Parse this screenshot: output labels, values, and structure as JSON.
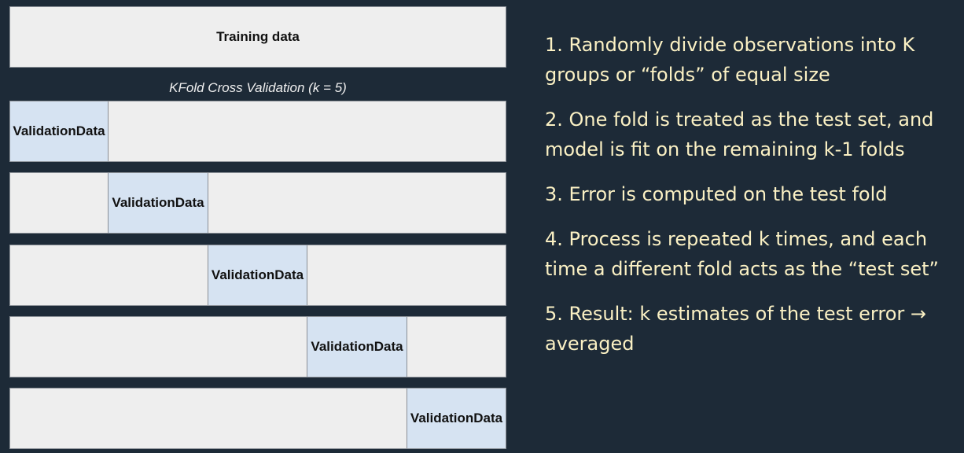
{
  "training": {
    "label": "Training data"
  },
  "caption": "KFold Cross Validation (k = 5)",
  "folds": {
    "k": 5,
    "validation_label_line1": "Validation",
    "validation_label_line2": "Data",
    "rows": [
      {
        "validation_index": 0
      },
      {
        "validation_index": 1
      },
      {
        "validation_index": 2
      },
      {
        "validation_index": 3
      },
      {
        "validation_index": 4
      }
    ]
  },
  "steps": [
    "1. Randomly divide observations into K groups or “folds” of equal size",
    "2. One fold is treated as the test set, and model is fit on the remaining k-1 folds",
    "3. Error is computed on the test fold",
    "4. Process is repeated k times, and each time a different fold acts as the “test set”",
    "5. Result: k estimates of the test error → averaged"
  ],
  "colors": {
    "background": "#1d2a37",
    "box_fill": "#eeeeee",
    "validation_fill": "#d6e3f2",
    "step_text": "#fbf1c4"
  }
}
